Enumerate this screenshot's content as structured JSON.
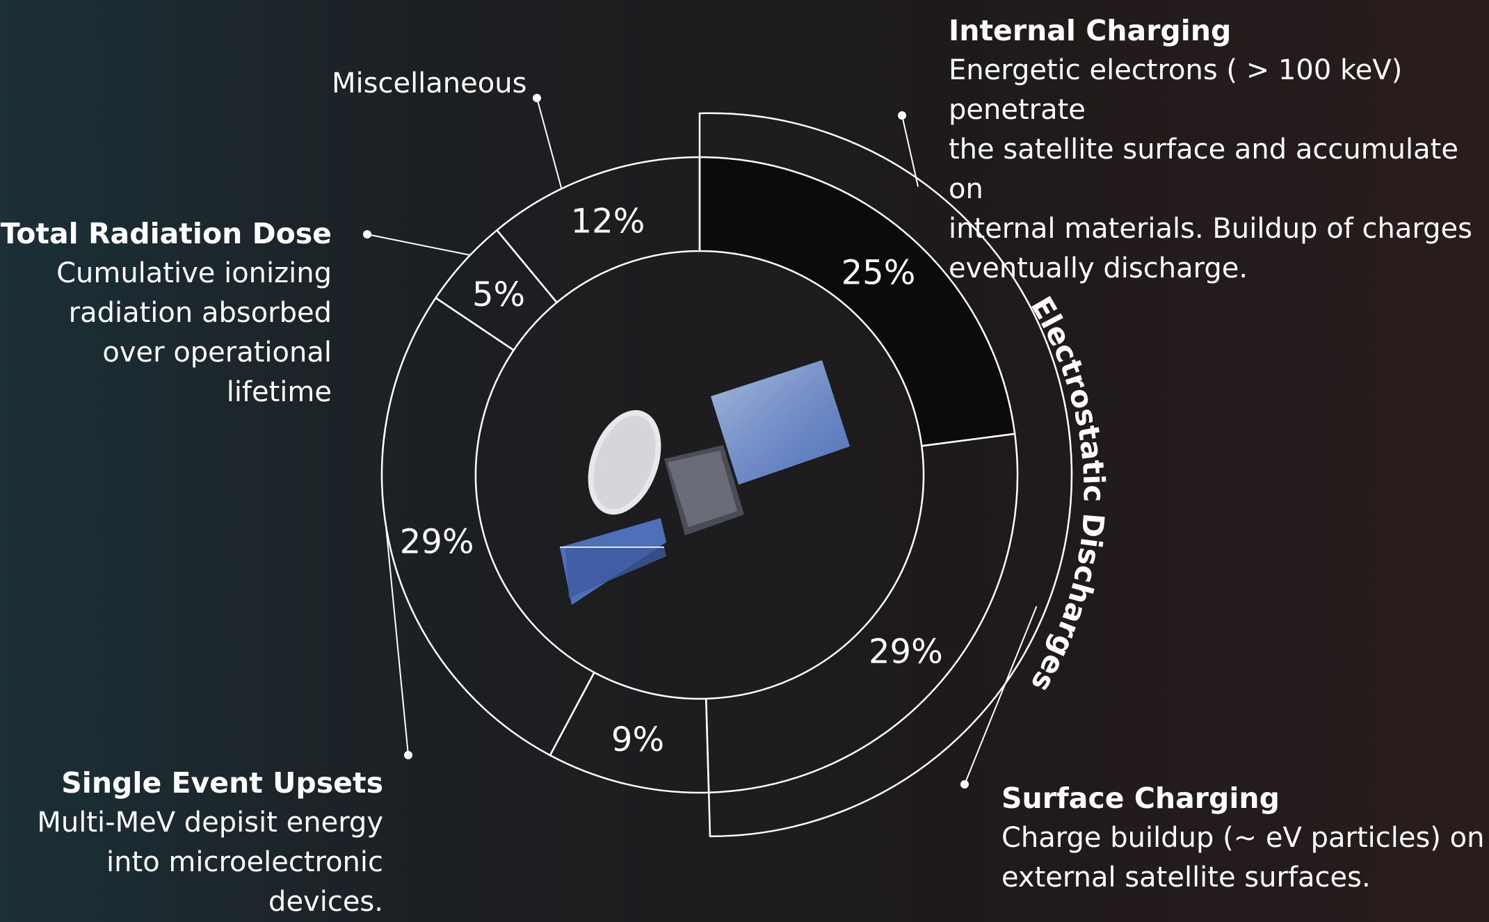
{
  "chart_data": {
    "type": "pie",
    "slices": [
      {
        "label": "Internal Charging",
        "value": 25
      },
      {
        "label": "Surface Charging",
        "value": 29
      },
      {
        "label": "Miscellaneous",
        "value": 9
      },
      {
        "label": "Single Event Upsets",
        "value": 29
      },
      {
        "label": "Total Radiation Dose",
        "value": 5
      },
      {
        "label": "Miscellaneous",
        "value": 12
      }
    ],
    "value_labels": [
      "25%",
      "29%",
      "9%",
      "29%",
      "5%",
      "12%"
    ],
    "group_label": "Electrostatic Discharges"
  },
  "annotations": {
    "internal_charging": {
      "title": "Internal Charging",
      "description": "Energetic electrons ( > 100 keV) penetrate\nthe satellite surface and accumulate on\ninternal materials. Buildup of charges\neventually discharge."
    },
    "miscellaneous": {
      "title": "Miscellaneous"
    },
    "total_radiation_dose": {
      "title": "Total Radiation Dose",
      "description": "Cumulative ionizing\nradiation absorbed\nover operational\nlifetime"
    },
    "single_event_upsets": {
      "title": "Single Event Upsets",
      "description": "Multi-MeV depisit  energy\ninto microelectronic devices."
    },
    "surface_charging": {
      "title": "Surface Charging",
      "description": "Charge buildup (~ eV particles) on\nexternal satellite surfaces."
    }
  },
  "colors": {
    "highlight_slice": "#0c0b0b",
    "stroke": "#ffffff"
  }
}
